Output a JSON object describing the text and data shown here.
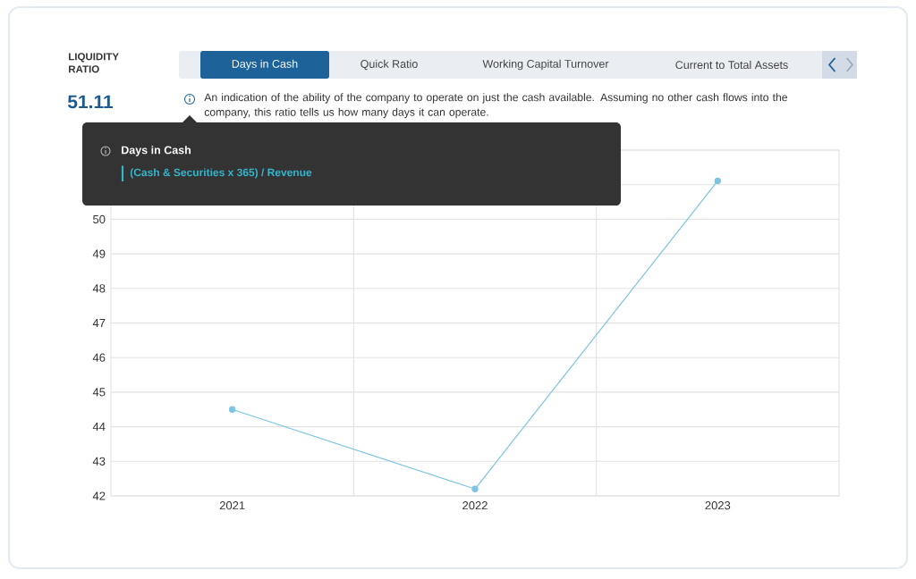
{
  "chart_data": {
    "type": "line",
    "title": "LIQUIDITY RATIO",
    "subtitle": "51.11",
    "categories": [
      "2021",
      "2022",
      "2023"
    ],
    "values": [
      44.5,
      42.2,
      51.11
    ],
    "color": "#7dc4e4",
    "ylim": [
      42,
      52
    ],
    "yticks": [
      42,
      43,
      44,
      45,
      46,
      47,
      48,
      49,
      50,
      {
        "value": 51,
        "label": null
      },
      {
        "value": 52,
        "label": null
      }
    ],
    "grid": true,
    "marker": "circle",
    "line_style": "solid",
    "annotations": [
      "Days in Cash",
      "Quick Ratio",
      "Working Capital Turnover",
      "Current to Total Assets",
      "An indication of the ability of the company to operate on just the cash available. Assuming no other cash flows into the company, this ratio tells us how many days it can operate.",
      "Days in Cash",
      "(Cash & Securities x 365) / Revenue"
    ]
  }
}
